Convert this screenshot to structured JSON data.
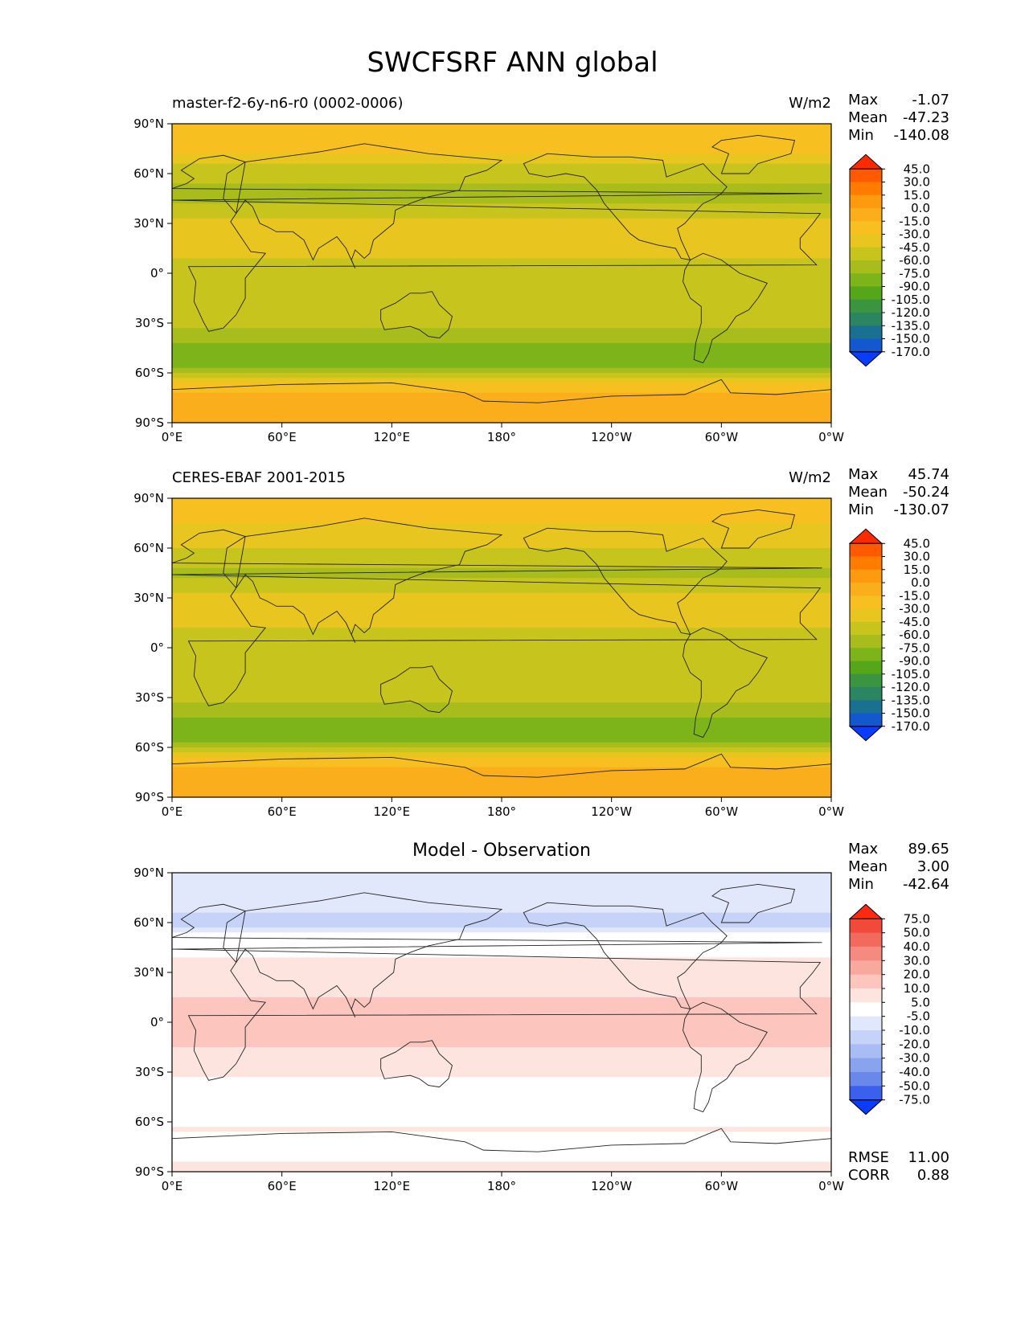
{
  "figure_title": "SWCFSRF ANN global",
  "units": "W/m2",
  "chart_data": [
    {
      "type": "heatmap",
      "panel": "test",
      "title": "master-f2-6y-n6-r0 (0002-0006)",
      "units": "W/m2",
      "stats": [
        {
          "label": "Max",
          "value": "-1.07"
        },
        {
          "label": "Mean",
          "value": "-47.23"
        },
        {
          "label": "Min",
          "value": "-140.08"
        }
      ],
      "x_ticks": [
        "0°E",
        "60°E",
        "120°E",
        "180°",
        "120°W",
        "60°W",
        "0°W"
      ],
      "y_ticks": [
        "90°N",
        "60°N",
        "30°N",
        "0°",
        "30°S",
        "60°S",
        "90°S"
      ],
      "colorbar_levels": [
        "45.0",
        "30.0",
        "15.0",
        "0.0",
        "-15.0",
        "-30.0",
        "-45.0",
        "-60.0",
        "-75.0",
        "-90.0",
        "-105.0",
        "-120.0",
        "-135.0",
        "-150.0",
        "-170.0"
      ],
      "colorbar_colors": [
        "#ff2a00",
        "#ff5a00",
        "#ff7c00",
        "#fd9a10",
        "#fbae1c",
        "#f7c020",
        "#e8c51f",
        "#c8c41e",
        "#a8bd1c",
        "#7db41a",
        "#55a619",
        "#3a9440",
        "#2a8560",
        "#1a7090",
        "#1458d0",
        "#0a3cff"
      ],
      "latitude_profile": [
        {
          "lat": 90,
          "value": -15
        },
        {
          "lat": 75,
          "value": -25
        },
        {
          "lat": 60,
          "value": -55
        },
        {
          "lat": 45,
          "value": -70
        },
        {
          "lat": 30,
          "value": -35
        },
        {
          "lat": 15,
          "value": -40
        },
        {
          "lat": 0,
          "value": -55
        },
        {
          "lat": -15,
          "value": -45
        },
        {
          "lat": -30,
          "value": -55
        },
        {
          "lat": -45,
          "value": -80
        },
        {
          "lat": -55,
          "value": -85
        },
        {
          "lat": -65,
          "value": -30
        },
        {
          "lat": -75,
          "value": -10
        },
        {
          "lat": -90,
          "value": -8
        }
      ]
    },
    {
      "type": "heatmap",
      "panel": "reference",
      "title": "CERES-EBAF 2001-2015",
      "units": "W/m2",
      "stats": [
        {
          "label": "Max",
          "value": "45.74"
        },
        {
          "label": "Mean",
          "value": "-50.24"
        },
        {
          "label": "Min",
          "value": "-130.07"
        }
      ],
      "x_ticks": [
        "0°E",
        "60°E",
        "120°E",
        "180°",
        "120°W",
        "60°W",
        "0°W"
      ],
      "y_ticks": [
        "90°N",
        "60°N",
        "30°N",
        "0°",
        "30°S",
        "60°S",
        "90°S"
      ],
      "colorbar_levels": [
        "45.0",
        "30.0",
        "15.0",
        "0.0",
        "-15.0",
        "-30.0",
        "-45.0",
        "-60.0",
        "-75.0",
        "-90.0",
        "-105.0",
        "-120.0",
        "-135.0",
        "-150.0",
        "-170.0"
      ],
      "colorbar_colors": [
        "#ff2a00",
        "#ff5a00",
        "#ff7c00",
        "#fd9a10",
        "#fbae1c",
        "#f7c020",
        "#e8c51f",
        "#c8c41e",
        "#a8bd1c",
        "#7db41a",
        "#55a619",
        "#3a9440",
        "#2a8560",
        "#1a7090",
        "#1458d0",
        "#0a3cff"
      ],
      "latitude_profile": [
        {
          "lat": 90,
          "value": -15
        },
        {
          "lat": 75,
          "value": -30
        },
        {
          "lat": 60,
          "value": -45
        },
        {
          "lat": 45,
          "value": -65
        },
        {
          "lat": 30,
          "value": -40
        },
        {
          "lat": 15,
          "value": -40
        },
        {
          "lat": 0,
          "value": -60
        },
        {
          "lat": -15,
          "value": -45
        },
        {
          "lat": -30,
          "value": -55
        },
        {
          "lat": -45,
          "value": -80
        },
        {
          "lat": -55,
          "value": -85
        },
        {
          "lat": -65,
          "value": -35
        },
        {
          "lat": -75,
          "value": -10
        },
        {
          "lat": -90,
          "value": -8
        }
      ]
    },
    {
      "type": "heatmap",
      "panel": "difference",
      "title": "Model - Observation",
      "units": "",
      "stats": [
        {
          "label": "Max",
          "value": "89.65"
        },
        {
          "label": "Mean",
          "value": "3.00"
        },
        {
          "label": "Min",
          "value": "-42.64"
        }
      ],
      "footer_stats": [
        {
          "label": "RMSE",
          "value": "11.00"
        },
        {
          "label": "CORR",
          "value": "0.88"
        }
      ],
      "x_ticks": [
        "0°E",
        "60°E",
        "120°E",
        "180°",
        "120°W",
        "60°W",
        "0°W"
      ],
      "y_ticks": [
        "90°N",
        "60°N",
        "30°N",
        "0°",
        "30°S",
        "60°S",
        "90°S"
      ],
      "colorbar_levels": [
        "75.0",
        "50.0",
        "40.0",
        "30.0",
        "20.0",
        "10.0",
        "5.0",
        "-5.0",
        "-10.0",
        "-20.0",
        "-30.0",
        "-40.0",
        "-50.0",
        "-75.0"
      ],
      "colorbar_colors": [
        "#ff2a10",
        "#f24a3a",
        "#f26a5e",
        "#f58a80",
        "#f9a89e",
        "#fcc6be",
        "#fde4df",
        "#ffffff",
        "#e2e8fb",
        "#c6d2f7",
        "#a9bcf3",
        "#8aa3ee",
        "#6a88ea",
        "#3c60ee",
        "#0a3cff"
      ],
      "latitude_profile": [
        {
          "lat": 90,
          "value": -8
        },
        {
          "lat": 75,
          "value": -6
        },
        {
          "lat": 60,
          "value": -12
        },
        {
          "lat": 45,
          "value": 3
        },
        {
          "lat": 30,
          "value": 8
        },
        {
          "lat": 15,
          "value": 10
        },
        {
          "lat": 0,
          "value": 12
        },
        {
          "lat": -15,
          "value": 10
        },
        {
          "lat": -30,
          "value": 6
        },
        {
          "lat": -45,
          "value": -4
        },
        {
          "lat": -55,
          "value": 2
        },
        {
          "lat": -65,
          "value": 6
        },
        {
          "lat": -75,
          "value": 1
        },
        {
          "lat": -90,
          "value": 8
        }
      ]
    }
  ]
}
